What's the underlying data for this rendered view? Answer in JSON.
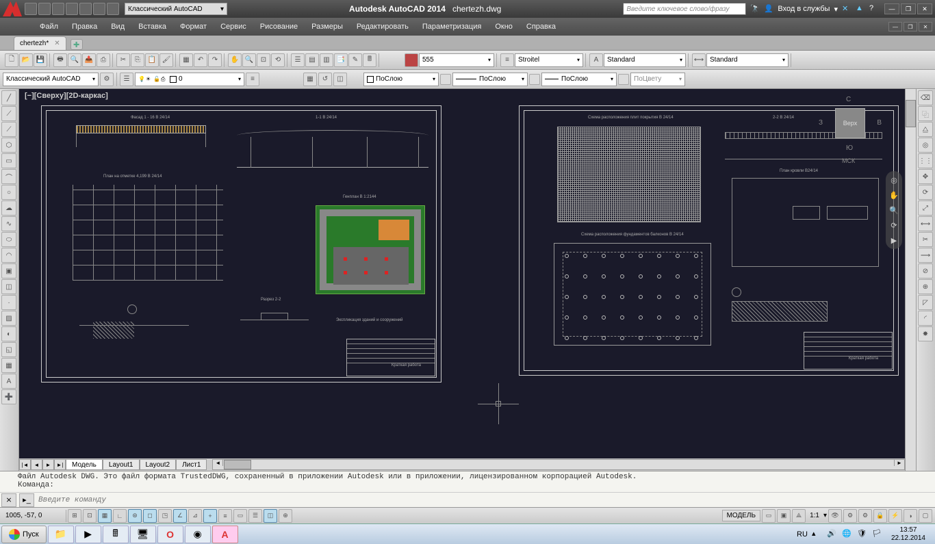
{
  "app": {
    "name": "Autodesk AutoCAD 2014",
    "file": "chertezh.dwg"
  },
  "workspace_dd": "Классический AutoCAD",
  "search_placeholder": "Введите ключевое слово/фразу",
  "signin": "Вход в службы",
  "menus": [
    "Файл",
    "Правка",
    "Вид",
    "Вставка",
    "Формат",
    "Сервис",
    "Рисование",
    "Размеры",
    "Редактировать",
    "Параметризация",
    "Окно",
    "Справка"
  ],
  "doc_tab": "chertezh*",
  "props": {
    "color": "555",
    "linetype_mgr": "Stroitel",
    "text_style": "Standard",
    "dim_style": "Standard"
  },
  "row2": {
    "workspace": "Классический AutoCAD",
    "layer": "0",
    "color": "ПоСлою",
    "linetype": "ПоСлою",
    "lineweight": "ПоСлою",
    "plotstyle": "ПоЦвету"
  },
  "viewport_label": "[−][Сверху][2D-каркас]",
  "viewcube": {
    "face": "Верх",
    "n": "С",
    "e": "В",
    "s": "Ю",
    "w": "З",
    "wcs": "МСК"
  },
  "layout_tabs": [
    "Модель",
    "Layout1",
    "Layout2",
    "Лист1"
  ],
  "cmd_log": "Файл Autodesk DWG. Это файл формата TrustedDWG, сохраненный в приложении Autodesk или в приложении, лицензированном корпорацией Autodesk.\nКоманда:",
  "cmd_placeholder": "Введите команду",
  "status": {
    "coords": "1005, -57, 0",
    "model": "МОДЕЛЬ",
    "scale": "1:1",
    "lang": "RU"
  },
  "clock": {
    "time": "13:57",
    "date": "22.12.2014"
  },
  "start_label": "Пуск",
  "colors": {
    "canvas_bg": "#1a1a2a",
    "sheet_border": "#cccccc",
    "site_green": "#2a7a2a",
    "site_orange": "#d88838",
    "elev_hatch": "#aa8844"
  },
  "drawings": {
    "sheet1": {
      "labels": [
        "Фасад 1 - 16  В 24/14",
        "1-1  В 24/14",
        "План на отметке 4,199 В 24/14",
        "Генплан  В 1:2144",
        "Разрез 2-2",
        "Экспликация зданий и сооружений",
        "Краткая работа"
      ]
    },
    "sheet2": {
      "labels": [
        "Схема расположения плит покрытия  В 24/14",
        "2-2  В 24/14",
        "План кровли  В24/14",
        "Схема расположения фундаментов балконов  В 24/14",
        "Краткая работа"
      ]
    }
  }
}
